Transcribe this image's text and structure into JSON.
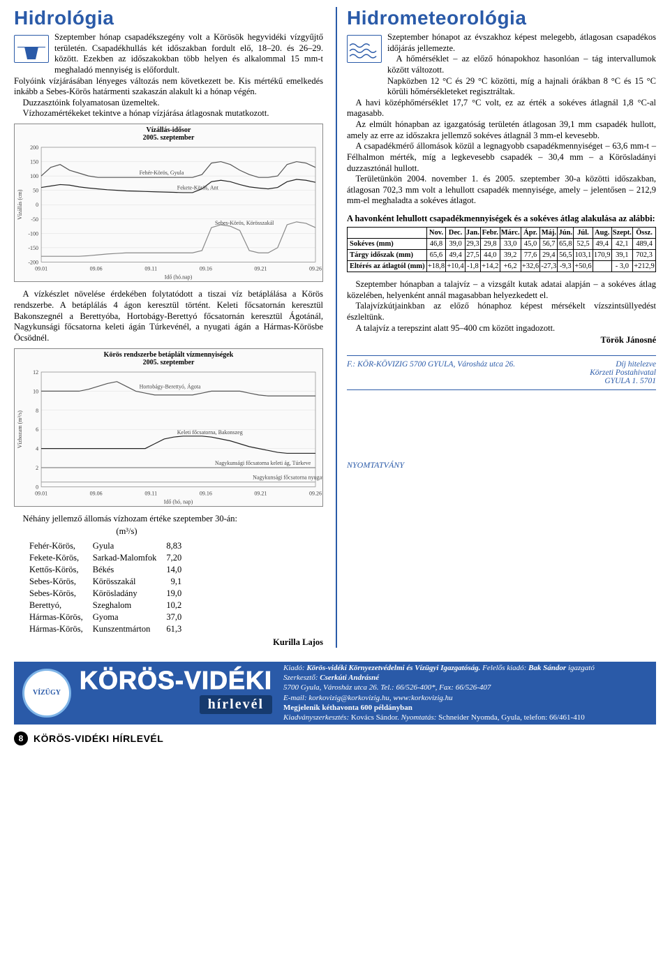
{
  "left": {
    "title": "Hidrológia",
    "title_color": "#2a5aa8",
    "p1": "Szeptember hónap csapadékszegény volt a Körös­ök hegyvidéki vízgyűjtő területén. Csapadékhullás két időszakban fordult elő, 18–20. és 26–29. között. Ezekben az időszakokban több helyen és alkalom­mal 15 mm-t meghaladó mennyiség is előfordult.",
    "p2": "Folyóink vízjárásában lényeges változás nem következett be. Kis mértékű emelkedés inkább a Sebes-Körös határmenti szakaszán alakult ki a hónap végén.",
    "p3": "Duzzasztóink folyamatosan üzemeltek.",
    "p4": "Vízhozamértékeket tekintve a hónap vízjárása átlagosnak mutatkozott.",
    "chart1": {
      "title": "Vízállás-idősor",
      "sub": "2005. szeptember",
      "ylim": [
        -200,
        200
      ],
      "yticks": [
        -200,
        -150,
        -100,
        -50,
        0,
        50,
        100,
        150,
        200
      ],
      "xticks": [
        "09.01",
        "09.06",
        "09.11",
        "09.16",
        "09.21",
        "09.26"
      ],
      "xlabel": "Idő (hó.nap)",
      "ylabel": "Vízállás (cm)",
      "series": [
        {
          "label": "Fehér-Körös, Gyula",
          "color": "#555",
          "data": [
            100,
            130,
            140,
            120,
            110,
            100,
            95,
            95,
            95,
            95,
            95,
            95,
            95,
            95,
            95,
            95,
            95,
            105,
            145,
            150,
            140,
            120,
            105,
            95,
            95,
            100,
            140,
            150,
            145,
            130
          ]
        },
        {
          "label": "Fekete-Körös, Ant",
          "color": "#222",
          "data": [
            60,
            65,
            70,
            68,
            62,
            58,
            55,
            52,
            50,
            48,
            47,
            46,
            45,
            44,
            43,
            42,
            42,
            55,
            80,
            85,
            80,
            70,
            62,
            58,
            55,
            60,
            80,
            88,
            85,
            78
          ]
        },
        {
          "label": "Sebes-Körös, Körösszakál",
          "color": "#888",
          "data": [
            -180,
            -180,
            -180,
            -180,
            -180,
            -178,
            -175,
            -172,
            -170,
            -168,
            -168,
            -168,
            -168,
            -168,
            -168,
            -168,
            -168,
            -160,
            -80,
            -70,
            -75,
            -90,
            -160,
            -168,
            -168,
            -150,
            -70,
            -60,
            -65,
            -80
          ]
        }
      ]
    },
    "p5": "A vízkészlet növelése érdekében folytatódott a tiszai víz betáplálása a Körös rendszerbe. A betáplálás 4 ágon keresztül történt. Keleti főcsatornán keresztül Bakonszegnél a Berettyóba, Hortobágy-Berettyó főcsatornán keresztül Ágotánál, Nagykunsági főcsatorna keleti ágán Túrkevénél, a nyugati ágán a Hármas-Kö­rösbe Öcsödnél.",
    "chart2": {
      "title": "Körös rendszerbe betáplált vízmennyiségek",
      "sub": "2005. szeptember",
      "ylim": [
        0,
        12
      ],
      "yticks": [
        0,
        2,
        4,
        6,
        8,
        10,
        12
      ],
      "xticks": [
        "09.01",
        "09.06",
        "09.11",
        "09.16",
        "09.21",
        "09.26"
      ],
      "xlabel": "Idő (hó, nap)",
      "ylabel": "Vízhozam (m³/s)",
      "series": [
        {
          "label": "Hortobágy-Berettyó, Ágota",
          "color": "#555",
          "data": [
            10,
            10,
            10,
            10,
            10,
            10.2,
            10.5,
            10.8,
            11,
            10.5,
            10,
            9.8,
            9.6,
            9.6,
            9.6,
            9.6,
            9.6,
            9.8,
            10,
            10,
            10,
            10,
            9.8,
            9.6,
            9.5,
            9.5,
            9.5,
            9.5,
            9.5,
            9.5
          ]
        },
        {
          "label": "Keleti főcsatorna, Bakonszeg",
          "color": "#222",
          "data": [
            4,
            4,
            4,
            4,
            4,
            4,
            4,
            4,
            4,
            4,
            4,
            4,
            4.5,
            5,
            5.2,
            5.3,
            5.3,
            5.3,
            5.2,
            5,
            4.8,
            4.5,
            4.2,
            4,
            3.8,
            3.6,
            3.5,
            3.5,
            3.5,
            3.5
          ]
        },
        {
          "label": "Nagykunsági főcsatorna keleti ág, Túrkeve",
          "color": "#888",
          "data": [
            2,
            2,
            2,
            2,
            2,
            2,
            2,
            2,
            2,
            2,
            2,
            2,
            2,
            2,
            2,
            2,
            2,
            2,
            2,
            2,
            2,
            2,
            2,
            2,
            2,
            2,
            2,
            2,
            2,
            2
          ]
        },
        {
          "label": "Nagykunsági főcsatorna nyugati ág, Öcsöd",
          "color": "#aaa",
          "data": [
            0.5,
            0.5,
            0.5,
            0.5,
            0.5,
            0.5,
            0.5,
            0.5,
            0.5,
            0.5,
            0.5,
            0.5,
            0.5,
            0.5,
            0.5,
            0.5,
            0.5,
            0.5,
            0.5,
            0.5,
            0.5,
            0.5,
            0.5,
            0.5,
            0.5,
            0.5,
            0.5,
            0.5,
            0.5,
            0.5
          ]
        }
      ]
    },
    "p6": "Néhány jellemző állomás vízhozam értéke szeptember 30-án:",
    "unit": "(m³/s)",
    "stations": [
      [
        "Fehér-Körös,",
        "Gyula",
        "8,83"
      ],
      [
        "Fekete-Körös,",
        "Sarkad-Malomfok",
        "7,20"
      ],
      [
        "Kettős-Körös,",
        "Békés",
        "14,0"
      ],
      [
        "Sebes-Körös,",
        "Körösszakál",
        "9,1"
      ],
      [
        "Sebes-Körös,",
        "Körösladány",
        "19,0"
      ],
      [
        "Berettyó,",
        "Szeghalom",
        "10,2"
      ],
      [
        "Hármas-Körös,",
        "Gyoma",
        "37,0"
      ],
      [
        "Hármas-Körös,",
        "Kunszentmárton",
        "61,3"
      ]
    ],
    "author": "Kurilla Lajos"
  },
  "right": {
    "title": "Hidrometeorológia",
    "title_color": "#2a5aa8",
    "p1": "Szeptember hónapot az évszakhoz képest mele­gebb, átlagosan csapadékos időjárás jellemezte.",
    "p2": "A hőmérséklet – az előző hónapokhoz hasonlóan – tág intervallumok között változott.",
    "p3": "Napközben 12 °C és 29 °C közötti, míg a haj­nali órákban 8 °C és 15 °C körüli hőmérsékleteket regisztráltak.",
    "p4": "A havi középhőmérséklet 17,7 °C volt, ez az érték a sokéves átlagnál 1,8 °C-al magasabb.",
    "p5": "Az elmúlt hónapban az igazgatóság területén átlagosan 39,1 mm csapadék hullott, amely az erre az időszakra jellemző sokéves átlagnál 3 mm-el kevesebb.",
    "p6": "A csapadékmérő állomások közül a legnagyobb csapadékmen­nyiséget – 63,6 mm-t – Félhalmon mérték, míg a legkevesebb csapadék – 30,4 mm – a Körösladányi duzzasztónál hullott.",
    "p7": "Területünkön 2004. november 1. és 2005. szeptember 30-a közötti időszakban, átlagosan 702,3 mm volt a lehullott csapadék mennyisége, amely – jelentősen – 212,9 mm-el meghaladta a sokéves átlagot.",
    "subhead": "A havonként lehullott csapadékmennyiségek és a sokéves átlag alakulása az alábbi:",
    "table": {
      "cols": [
        "Nov.",
        "Dec.",
        "Jan.",
        "Febr.",
        "Márc.",
        "Ápr.",
        "Máj.",
        "Jún.",
        "Júl.",
        "Aug.",
        "Szept.",
        "Össz."
      ],
      "rows": [
        {
          "h": "Sok­éves (mm)",
          "v": [
            "46,8",
            "39,0",
            "29,3",
            "29,8",
            "33,0",
            "45,0",
            "56,7",
            "65,8",
            "52,5",
            "49,4",
            "42,1",
            "489,4"
          ]
        },
        {
          "h": "Tárgy időszak (mm)",
          "v": [
            "65,6",
            "49,4",
            "27,5",
            "44,0",
            "39,2",
            "77,6",
            "29,4",
            "56,5",
            "103,1",
            "170,9",
            "39,1",
            "702,3"
          ]
        },
        {
          "h": "Eltérés az átlagtól (mm)",
          "v": [
            "+18,8",
            "+10,4",
            "-1,8",
            "+14,2",
            "+6,2",
            "+32,6",
            "-27,3",
            "-9,3",
            "+50,6",
            "",
            "- 3,0",
            "+212,9"
          ]
        }
      ]
    },
    "p8": "Szeptember hónapban a talajvíz – a vizsgált kutak adatai alap­ján – a sokéves átlag közelében, helyenként annál magasabban helyezkedett el.",
    "p9": "Talajvízkútjainkban az előző hónaphoz képest mérsékelt víz­szintsüllyedést észleltünk.",
    "p10": "A talajvíz a terepszint alatt 95–400 cm között ingadozott.",
    "author": "Török Jánosné",
    "addr_left": "F.: KÖR-KÖVIZIG 5700 GYULA, Városház utca 26.",
    "addr_right1": "Díj hitelezve",
    "addr_right2": "Körzeti Postahivatal",
    "addr_right3": "GYULA 1. 5701",
    "nyom": "NYOMTATVÁNY"
  },
  "masthead": {
    "brand": "KÖRÖS-VIDÉKI",
    "hirlevel": "hírlevél",
    "logo": "VÍZÜGY",
    "imprint_l1a": "Kiadó: ",
    "imprint_l1b": "Körös-vidéki Környezetvédelmi és Vízügyi Igazgatóság.",
    "imprint_l1c": " Felelős kiadó: ",
    "imprint_l1d": "Bak Sándor",
    "imprint_l1e": " igazgató",
    "imprint_l2a": "Szerkesztő: ",
    "imprint_l2b": "Cserkúti Andrásné",
    "imprint_l3": "5700 Gyula, Városház utca 26.  Tel.: 66/526-400*, Fax: 66/526-407",
    "imprint_l4": "E-mail: korkovizig@korkovizig.hu, www:korkovizig.hu",
    "imprint_l5": "Megjelenik kéthavonta 600 példányban",
    "imprint_l6a": "Kiadványszerkesztés:",
    "imprint_l6b": " Kovács Sándor. ",
    "imprint_l6c": "Nyomtatás:",
    "imprint_l6d": " Schneider Nyomda, Gyula, telefon: 66/461-410"
  },
  "footer": {
    "num": "8",
    "text": "KÖRÖS-VIDÉKI HÍRLEVÉL"
  }
}
